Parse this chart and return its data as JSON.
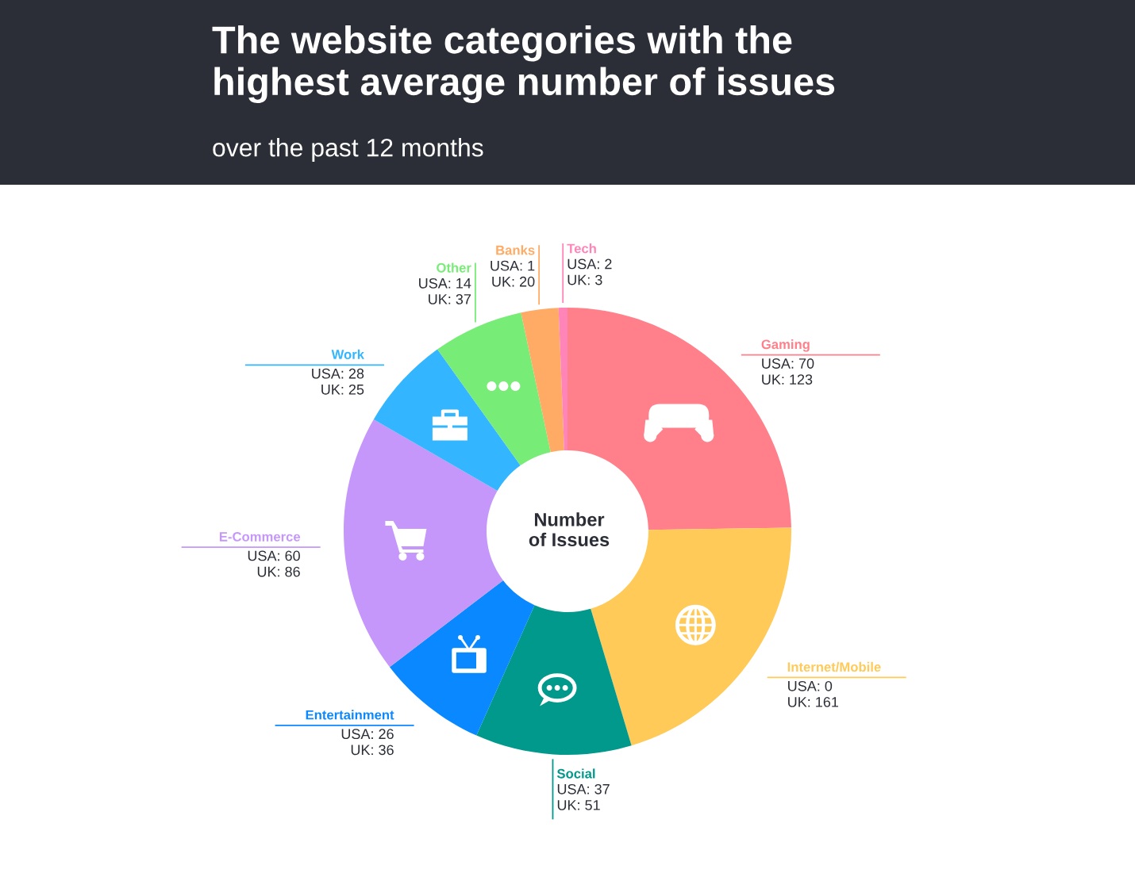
{
  "chart_data": {
    "type": "donut",
    "title": "The website categories with the\nhighest average number of issues",
    "subtitle": "over the past 12 months",
    "categories": [
      "Gaming",
      "Internet/Mobile",
      "Social",
      "Entertainment",
      "E-Commerce",
      "Work",
      "Other",
      "Banks",
      "Tech"
    ],
    "values": [
      193,
      161,
      88,
      62,
      146,
      53,
      51,
      21,
      5
    ],
    "colors": [
      "#ff808a",
      "#ffca57",
      "#00998c",
      "#0a88ff",
      "#c597fb",
      "#33b6ff",
      "#77ec77",
      "#ffab66",
      "#ff85b8"
    ],
    "value_labels": [
      "USA: 70\nUK: 123",
      "USA: 0\nUK: 161",
      "USA: 37\nUK: 51",
      "USA: 26\nUK: 36",
      "USA: 60\nUK: 86",
      "USA: 28\nUK: 25",
      "USA: 14\nUK: 37",
      "USA: 1\nUK: 20",
      "USA: 2\nUK: 3"
    ],
    "annotations": [
      "Number\nof Issues"
    ]
  }
}
